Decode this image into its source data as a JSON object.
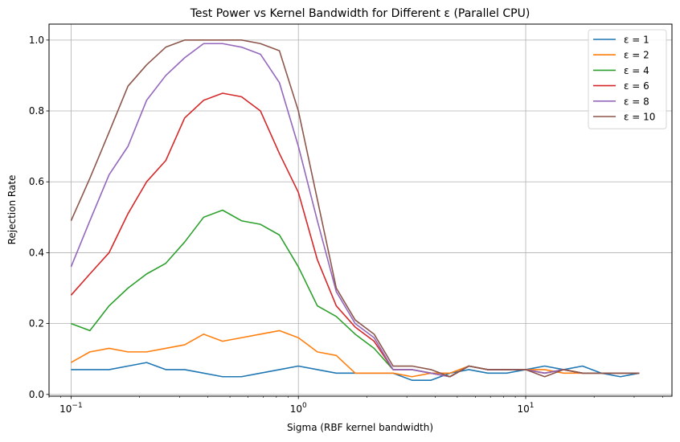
{
  "chart_data": {
    "type": "line",
    "title": "Test Power vs Kernel Bandwidth for Different ε (Parallel CPU)",
    "xlabel": "Sigma (RBF kernel bandwidth)",
    "ylabel": "Rejection Rate",
    "xscale": "log",
    "xlim": [
      0.08,
      44
    ],
    "ylim": [
      -0.005,
      1.045
    ],
    "grid": true,
    "legend_position": "top-right",
    "x_ticks": [
      {
        "value": 0.1,
        "base": "10",
        "exp": "−1"
      },
      {
        "value": 1,
        "base": "10",
        "exp": "0"
      },
      {
        "value": 10,
        "base": "10",
        "exp": "1"
      }
    ],
    "y_ticks": [
      "0.0",
      "0.2",
      "0.4",
      "0.6",
      "0.8",
      "1.0"
    ],
    "x": [
      0.1,
      0.121,
      0.147,
      0.178,
      0.215,
      0.261,
      0.316,
      0.383,
      0.464,
      0.562,
      0.681,
      0.825,
      1.0,
      1.212,
      1.468,
      1.778,
      2.154,
      2.61,
      3.162,
      3.831,
      4.642,
      5.623,
      6.813,
      8.254,
      10.0,
      12.12,
      14.68,
      17.78,
      21.54,
      26.1,
      31.62
    ],
    "series": [
      {
        "name": "ε = 1",
        "color": "#1f77b4",
        "values": [
          0.07,
          0.07,
          0.07,
          0.08,
          0.09,
          0.07,
          0.07,
          0.06,
          0.05,
          0.05,
          0.06,
          0.07,
          0.08,
          0.07,
          0.06,
          0.06,
          0.06,
          0.06,
          0.04,
          0.04,
          0.06,
          0.07,
          0.06,
          0.06,
          0.07,
          0.08,
          0.07,
          0.08,
          0.06,
          0.05,
          0.06
        ]
      },
      {
        "name": "ε = 2",
        "color": "#ff7f0e",
        "values": [
          0.09,
          0.12,
          0.13,
          0.12,
          0.12,
          0.13,
          0.14,
          0.17,
          0.15,
          0.16,
          0.17,
          0.18,
          0.16,
          0.12,
          0.11,
          0.06,
          0.06,
          0.06,
          0.05,
          0.06,
          0.06,
          0.08,
          0.07,
          0.07,
          0.07,
          0.07,
          0.06,
          0.06,
          0.06,
          0.06,
          0.06
        ]
      },
      {
        "name": "ε = 4",
        "color": "#2ca02c",
        "values": [
          0.2,
          0.18,
          0.25,
          0.3,
          0.34,
          0.37,
          0.43,
          0.5,
          0.52,
          0.49,
          0.48,
          0.45,
          0.36,
          0.25,
          0.22,
          0.17,
          0.13,
          0.07,
          0.07,
          0.06,
          0.05,
          0.08,
          0.07,
          0.07,
          0.07,
          0.06,
          0.07,
          0.06,
          0.06,
          0.06,
          0.06
        ]
      },
      {
        "name": "ε = 6",
        "color": "#d62728",
        "values": [
          0.28,
          0.34,
          0.4,
          0.51,
          0.6,
          0.66,
          0.78,
          0.83,
          0.85,
          0.84,
          0.8,
          0.68,
          0.57,
          0.38,
          0.25,
          0.19,
          0.15,
          0.07,
          0.07,
          0.06,
          0.05,
          0.08,
          0.07,
          0.07,
          0.07,
          0.06,
          0.07,
          0.06,
          0.06,
          0.06,
          0.06
        ]
      },
      {
        "name": "ε = 8",
        "color": "#9467bd",
        "values": [
          0.36,
          0.49,
          0.62,
          0.7,
          0.83,
          0.9,
          0.95,
          0.99,
          0.99,
          0.98,
          0.96,
          0.88,
          0.7,
          0.49,
          0.29,
          0.2,
          0.16,
          0.07,
          0.07,
          0.06,
          0.05,
          0.08,
          0.07,
          0.07,
          0.07,
          0.06,
          0.07,
          0.06,
          0.06,
          0.06,
          0.06
        ]
      },
      {
        "name": "ε = 10",
        "color": "#8c564b",
        "values": [
          0.49,
          0.61,
          0.74,
          0.87,
          0.93,
          0.98,
          1.0,
          1.0,
          1.0,
          1.0,
          0.99,
          0.97,
          0.8,
          0.55,
          0.3,
          0.21,
          0.17,
          0.08,
          0.08,
          0.07,
          0.05,
          0.08,
          0.07,
          0.07,
          0.07,
          0.05,
          0.07,
          0.06,
          0.06,
          0.06,
          0.06
        ]
      }
    ]
  }
}
